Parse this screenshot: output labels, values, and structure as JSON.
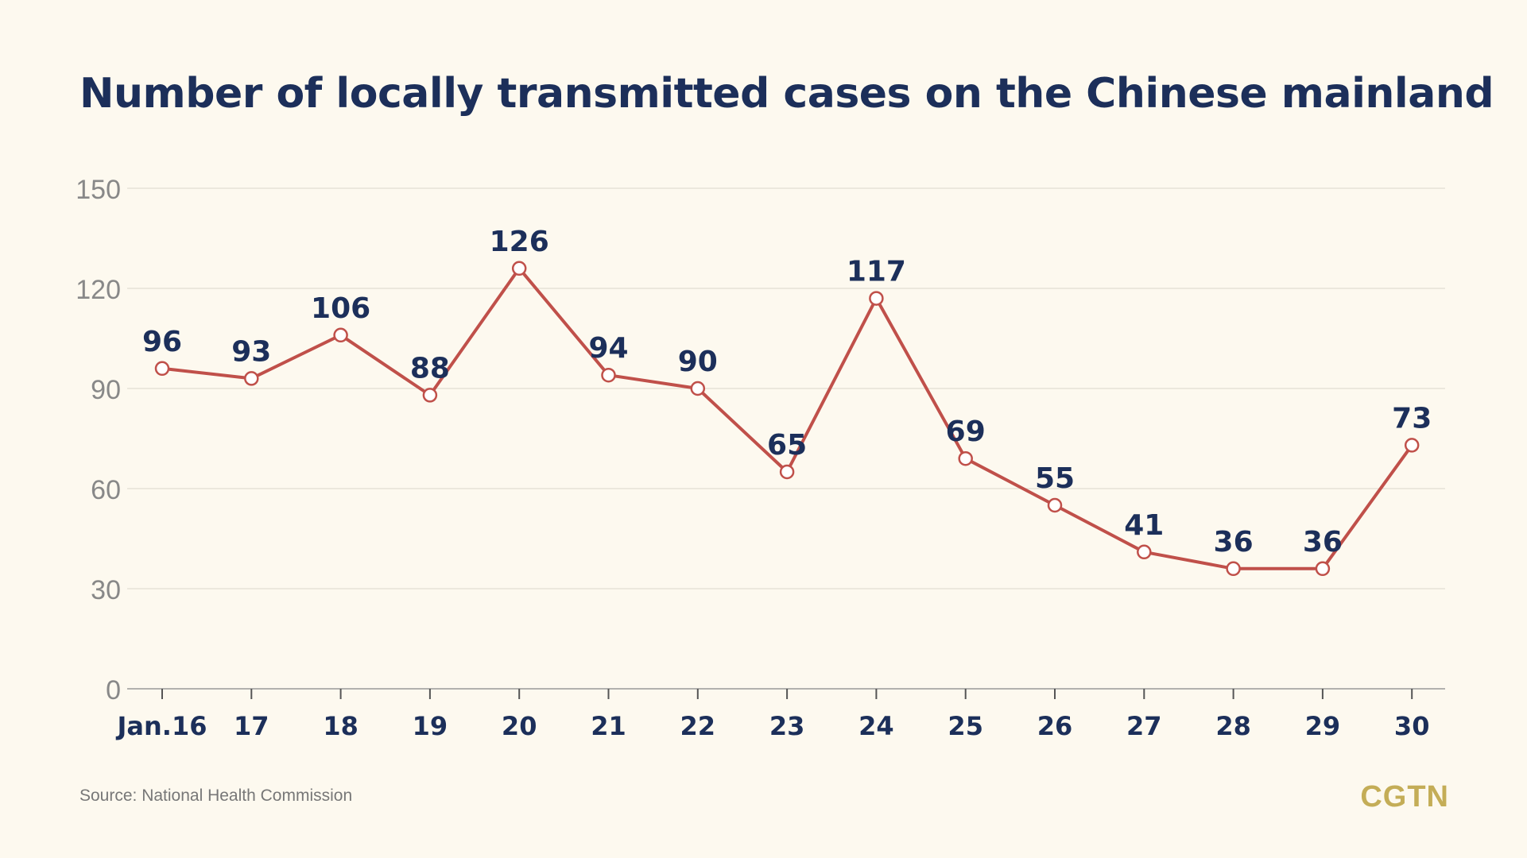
{
  "chart_data": {
    "type": "line",
    "title": "Number of locally transmitted cases on the Chinese mainland",
    "xlabel": "",
    "ylabel": "",
    "categories": [
      "Jan.16",
      "17",
      "18",
      "19",
      "20",
      "21",
      "22",
      "23",
      "24",
      "25",
      "26",
      "27",
      "28",
      "29",
      "30"
    ],
    "series": [
      {
        "values": [
          96,
          93,
          106,
          88,
          126,
          94,
          90,
          65,
          117,
          69,
          55,
          41,
          36,
          36,
          73
        ]
      }
    ],
    "ylim": [
      0,
      150
    ],
    "yticks": [
      0,
      30,
      60,
      90,
      120,
      150
    ],
    "grid": true,
    "data_labels": true,
    "colors": {
      "line": "#c0504a",
      "labels": "#1c2f5a",
      "axis_text": "#888888",
      "grid": "#e3ded2"
    }
  },
  "footer": {
    "source": "Source: National Health Commission",
    "logo": "CGTN"
  }
}
